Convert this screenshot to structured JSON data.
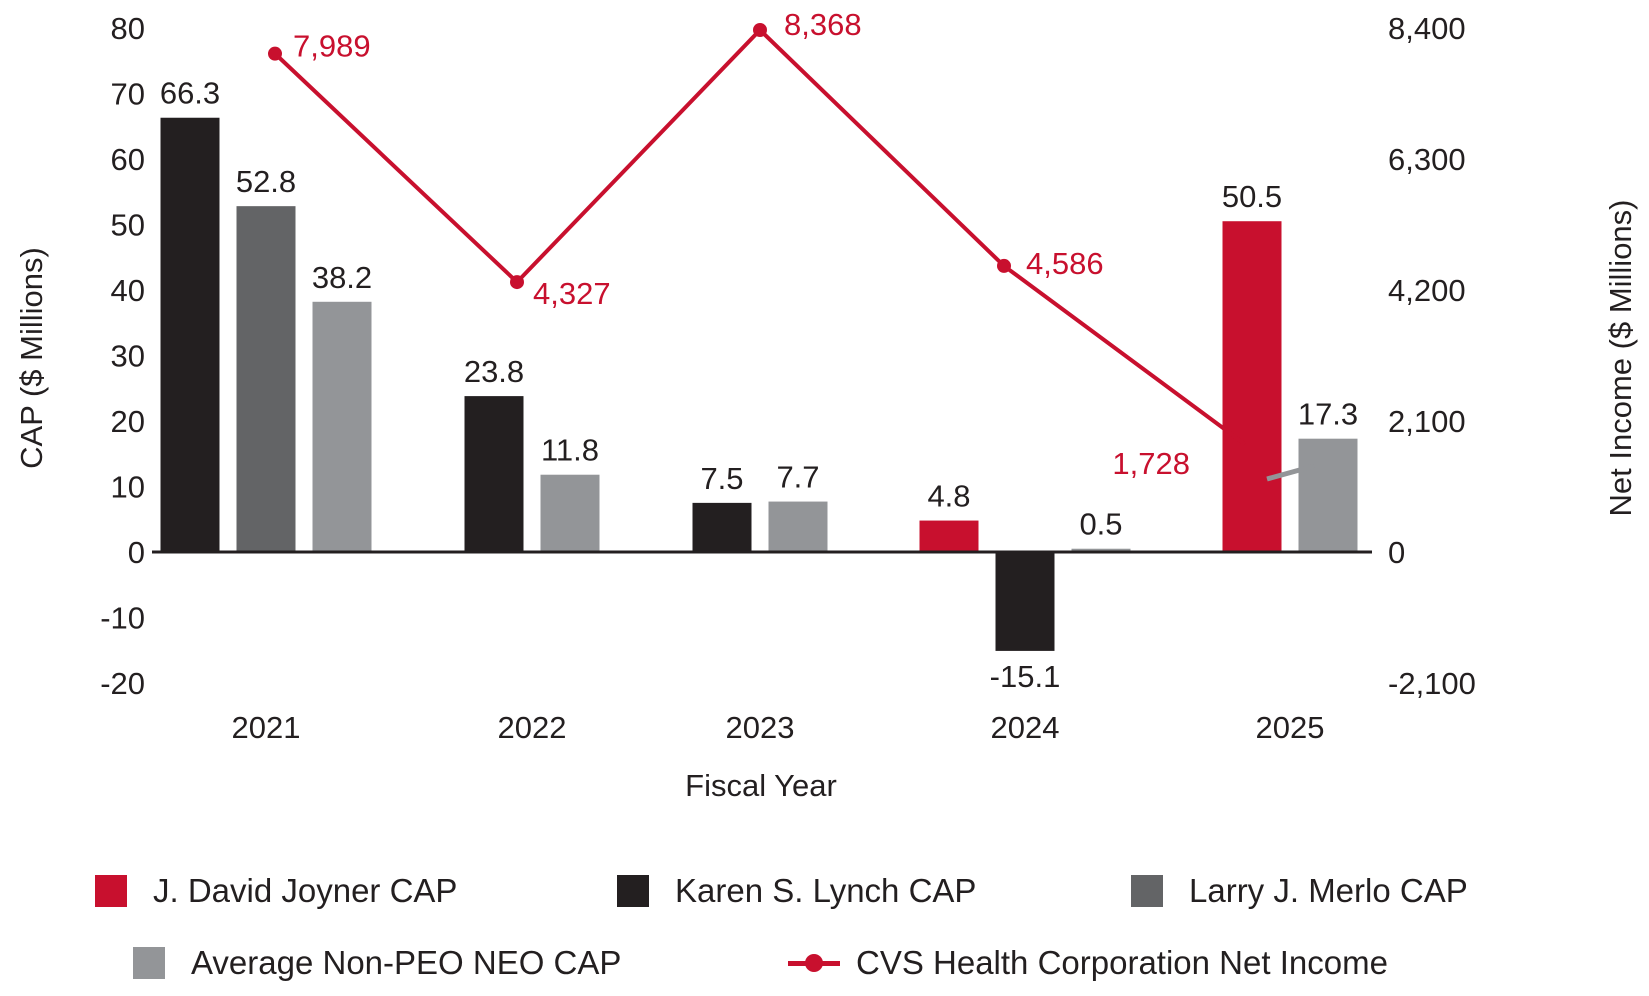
{
  "chart_data": {
    "type": "bar",
    "title": "",
    "xlabel": "Fiscal Year",
    "ylabel": "CAP ($ Millions)",
    "y2label": "Net Income ($ Millions)",
    "categories": [
      "2021",
      "2022",
      "2023",
      "2024",
      "2025"
    ],
    "ylim": [
      -20,
      80
    ],
    "yticks": [
      80,
      70,
      60,
      50,
      40,
      30,
      20,
      10,
      0,
      -10,
      -20
    ],
    "ytick_labels": [
      "80",
      "70",
      "60",
      "50",
      "40",
      "30",
      "20",
      "10",
      "0",
      "-10",
      "-20"
    ],
    "y2lim": [
      -2100,
      8400
    ],
    "y2ticks": [
      8400,
      6300,
      4200,
      2100,
      0,
      -2100
    ],
    "y2tick_labels": [
      "8,400",
      "6,300",
      "4,200",
      "2,100",
      "0",
      "-2,100"
    ],
    "grid": false,
    "legend_position": "bottom",
    "series": [
      {
        "name": "J. David Joyner CAP",
        "type": "bar",
        "axis": "left",
        "color": "#c8102e",
        "values": [
          null,
          null,
          null,
          4.8,
          50.5
        ],
        "labels": [
          null,
          null,
          null,
          "4.8",
          "50.5"
        ]
      },
      {
        "name": "Karen S. Lynch CAP",
        "type": "bar",
        "axis": "left",
        "color": "#231f20",
        "values": [
          66.3,
          23.8,
          7.5,
          -15.1,
          null
        ],
        "labels": [
          "66.3",
          "23.8",
          "7.5",
          "-15.1",
          null
        ]
      },
      {
        "name": "Larry J. Merlo CAP",
        "type": "bar",
        "axis": "left",
        "color": "#636466",
        "values": [
          52.8,
          null,
          null,
          null,
          null
        ],
        "labels": [
          "52.8",
          null,
          null,
          null,
          null
        ]
      },
      {
        "name": "Average Non-PEO NEO CAP",
        "type": "bar",
        "axis": "left",
        "color": "#939598",
        "values": [
          38.2,
          11.8,
          7.7,
          0.5,
          17.3
        ],
        "labels": [
          "38.2",
          "11.8",
          "7.7",
          "0.5",
          "17.3"
        ]
      },
      {
        "name": "CVS Health Corporation Net Income",
        "type": "line",
        "axis": "right",
        "color": "#c8102e",
        "values": [
          7989,
          4327,
          8368,
          4586,
          1728
        ],
        "labels": [
          "7,989",
          "4,327",
          "8,368",
          "4,586",
          "1,728"
        ]
      }
    ]
  },
  "legend": {
    "items": [
      {
        "label": "J. David Joyner CAP",
        "color": "#c8102e",
        "icon": "square-swatch"
      },
      {
        "label": "Karen S. Lynch CAP",
        "color": "#231f20",
        "icon": "square-swatch"
      },
      {
        "label": "Larry J. Merlo CAP",
        "color": "#636466",
        "icon": "square-swatch"
      },
      {
        "label": "Average Non-PEO NEO CAP",
        "color": "#939598",
        "icon": "square-swatch"
      },
      {
        "label": "CVS Health Corporation Net Income",
        "color": "#c8102e",
        "icon": "line-dot-marker"
      }
    ]
  },
  "colors": {
    "accent_red": "#c8102e",
    "text": "#231f20",
    "leader_line": "#939598"
  }
}
